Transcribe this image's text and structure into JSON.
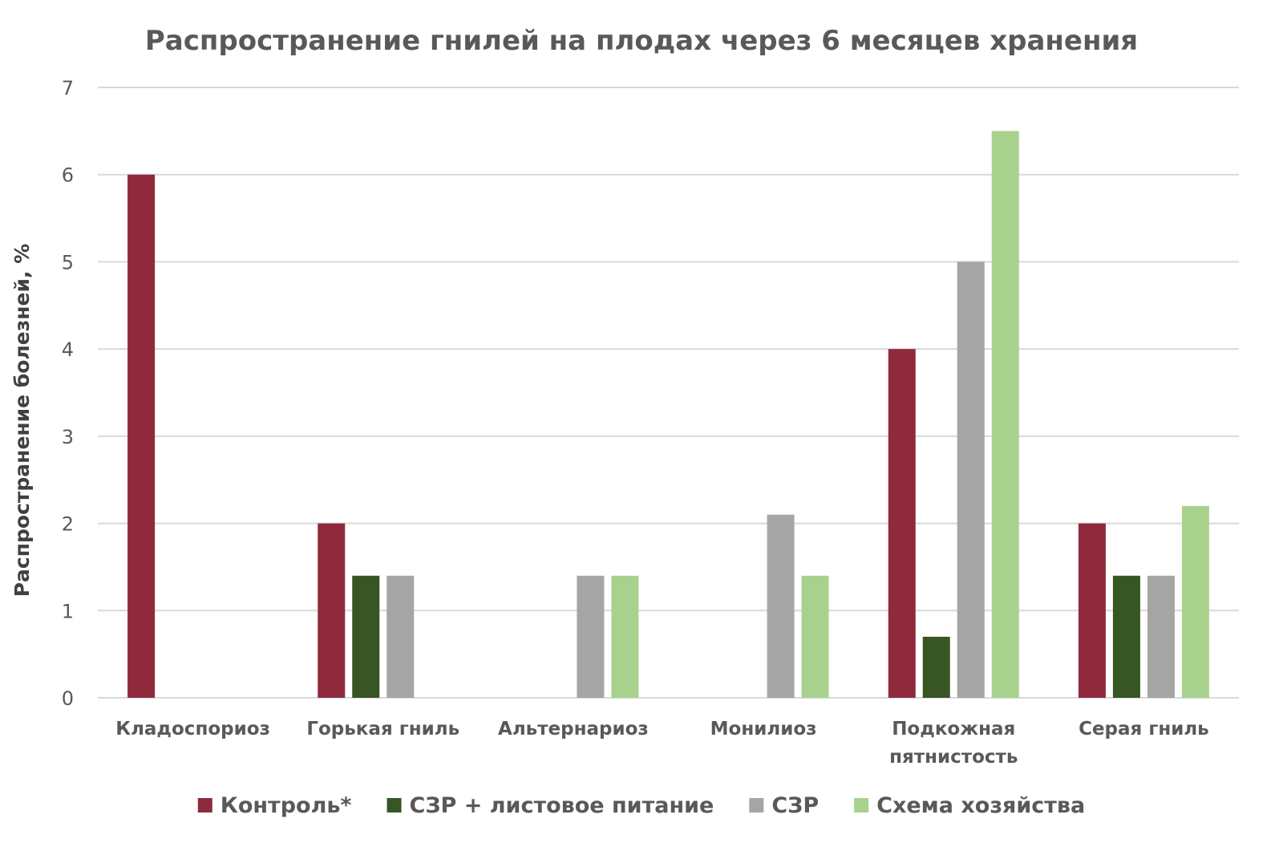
{
  "chart_data": {
    "type": "bar",
    "title": "Распространение гнилей на плодах через 6 месяцев хранения",
    "xlabel": "",
    "ylabel": "Распространение болезней, %",
    "ylim": [
      0,
      7
    ],
    "yticks": [
      "0",
      "1",
      "2",
      "3",
      "4",
      "5",
      "6",
      "7"
    ],
    "grid": true,
    "legend_position": "bottom",
    "categories": [
      [
        "Кладоспориоз"
      ],
      [
        "Горькая гниль"
      ],
      [
        "Альтернариоз"
      ],
      [
        "Монилиоз"
      ],
      [
        "Подкожная",
        "пятнистость"
      ],
      [
        "Серая гниль"
      ]
    ],
    "series": [
      {
        "name": "Контроль*",
        "color": "#8e2a3c",
        "values": [
          6,
          2,
          0,
          0,
          4,
          2
        ]
      },
      {
        "name": "СЗР + листовое питание",
        "color": "#375623",
        "values": [
          0,
          1.4,
          0,
          0,
          0.7,
          1.4
        ]
      },
      {
        "name": "СЗР",
        "color": "#a5a5a5",
        "values": [
          0,
          1.4,
          1.4,
          2.1,
          5,
          1.4
        ]
      },
      {
        "name": "Схема хозяйства",
        "color": "#a9d18e",
        "values": [
          0,
          0,
          1.4,
          1.4,
          6.5,
          2.2
        ]
      }
    ]
  }
}
